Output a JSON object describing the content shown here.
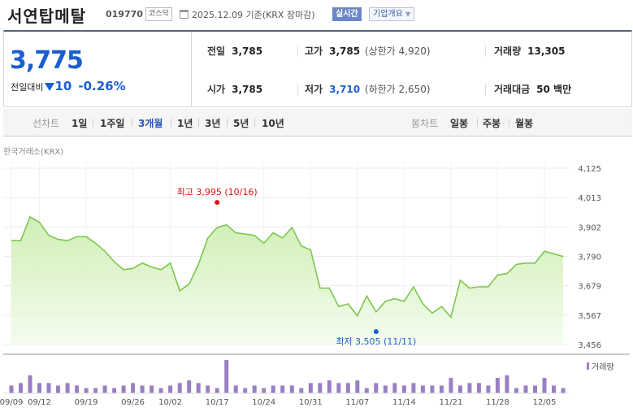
{
  "header": {
    "company_name": "서연탑메탈",
    "code": "019770",
    "market": "코스닥",
    "date_text": "2025.12.09 기준(KRX 장마감)",
    "realtime_label": "실시간",
    "company_info_label": "기업개요"
  },
  "quote": {
    "price": "3,775",
    "change_label": "전일대비",
    "change": "10",
    "change_pct": "-0.26%",
    "prev_close_label": "전일",
    "prev_close": "3,785",
    "high_label": "고가",
    "high": "3,785",
    "upper_limit": "(상한가 4,920)",
    "volume_label": "거래량",
    "volume": "13,305",
    "open_label": "시가",
    "open": "3,785",
    "low_label": "저가",
    "low": "3,710",
    "lower_limit": "(하한가 2,650)",
    "amount_label": "거래대금",
    "amount": "50 백만"
  },
  "tabs": {
    "line_chart": "선차트",
    "periods": [
      "1일",
      "1주일",
      "3개월",
      "1년",
      "3년",
      "5년",
      "10년"
    ],
    "active_period": "3개월",
    "candle_chart": "봉차트",
    "candle_periods": [
      "일봉",
      "주봉",
      "월봉"
    ]
  },
  "exchange_label": "한국거래소(KRX)",
  "colors": {
    "price_down": "#1a5fd1",
    "line": "#7ec64e",
    "fill": "#dcf5c8",
    "volume_bar": "#9b7fc4",
    "max_marker": "#e01010",
    "min_marker": "#1a5fd1"
  },
  "chart_data": {
    "type": "area",
    "y_ticks": [
      "4,125",
      "4,013",
      "3,902",
      "3,790",
      "3,679",
      "3,567",
      "3,456"
    ],
    "ylim": [
      3456,
      4125
    ],
    "x_labels": [
      "09/09",
      "09/12",
      "09/19",
      "09/26",
      "10/02",
      "10/17",
      "10/24",
      "10/31",
      "11/07",
      "11/14",
      "11/21",
      "11/28",
      "12/05"
    ],
    "x_label_index": [
      0,
      3,
      8,
      13,
      17,
      22,
      27,
      32,
      37,
      42,
      47,
      52,
      57
    ],
    "prices": [
      3850,
      3850,
      3940,
      3920,
      3870,
      3855,
      3850,
      3865,
      3865,
      3840,
      3810,
      3770,
      3740,
      3745,
      3765,
      3750,
      3740,
      3765,
      3660,
      3685,
      3760,
      3860,
      3900,
      3910,
      3880,
      3875,
      3870,
      3840,
      3880,
      3860,
      3900,
      3830,
      3815,
      3670,
      3670,
      3600,
      3610,
      3565,
      3640,
      3580,
      3620,
      3630,
      3620,
      3675,
      3610,
      3575,
      3600,
      3560,
      3700,
      3670,
      3675,
      3675,
      3720,
      3725,
      3760,
      3765,
      3765,
      3810,
      3800,
      3790
    ],
    "volumes": [
      3,
      4,
      7,
      4,
      4,
      3,
      4,
      3,
      2,
      2,
      3,
      2,
      3,
      4,
      3,
      3,
      2,
      3,
      4,
      5,
      4,
      3,
      2,
      13,
      3,
      2,
      3,
      2,
      3,
      3,
      3,
      2,
      4,
      4,
      5,
      4,
      4,
      5,
      2,
      4,
      3,
      4,
      3,
      4,
      3,
      3,
      3,
      6,
      3,
      4,
      4,
      3,
      6,
      7,
      2,
      3,
      3,
      6,
      3,
      2
    ],
    "max_label": "최고 3,995 (10/16)",
    "max_value": 3995,
    "max_index": 22,
    "min_label": "최저 3,505 (11/11)",
    "min_value": 3505,
    "min_index": 39,
    "volume_legend": "거래량"
  }
}
